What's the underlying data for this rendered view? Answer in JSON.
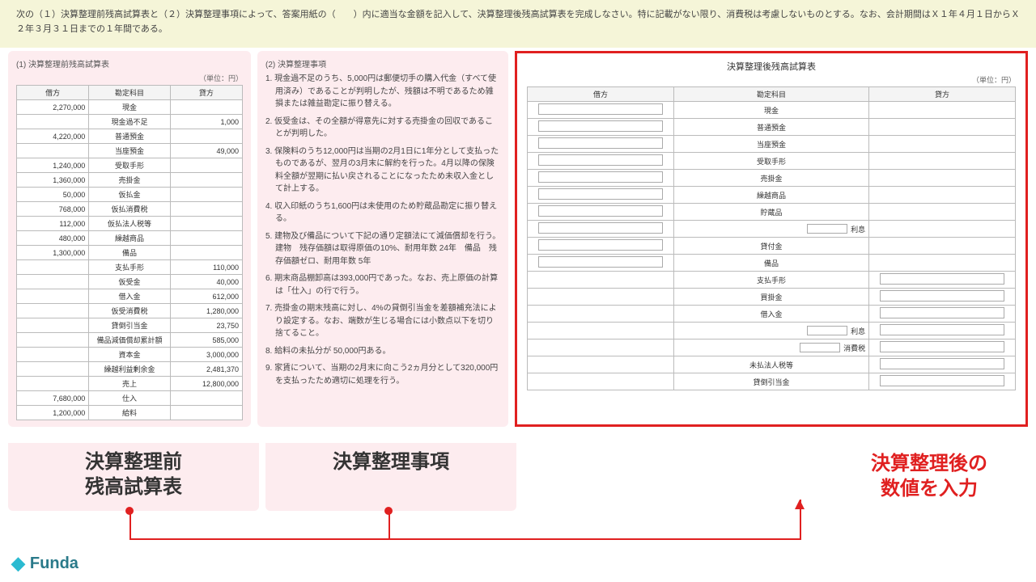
{
  "instruction": "次の（１）決算整理前残高試算表と（２）決算整理事項によって、答案用紙の（　　）内に適当な金額を記入して、決算整理後残高試算表を完成しなさい。特に記載がない限り、消費税は考慮しないものとする。なお、会計期間はＸ１年４月１日からＸ２年３月３１日までの１年間である。",
  "panel1": {
    "title": "(1) 決算整理前残高試算表",
    "unit": "（単位：円）",
    "headers": {
      "debit": "借方",
      "account": "勘定科目",
      "credit": "貸方"
    },
    "rows": [
      {
        "d": "2,270,000",
        "a": "現金",
        "c": ""
      },
      {
        "d": "",
        "a": "現金過不足",
        "c": "1,000"
      },
      {
        "d": "4,220,000",
        "a": "普通預金",
        "c": ""
      },
      {
        "d": "",
        "a": "当座預金",
        "c": "49,000"
      },
      {
        "d": "1,240,000",
        "a": "受取手形",
        "c": ""
      },
      {
        "d": "1,360,000",
        "a": "売掛金",
        "c": ""
      },
      {
        "d": "50,000",
        "a": "仮払金",
        "c": ""
      },
      {
        "d": "768,000",
        "a": "仮払消費税",
        "c": ""
      },
      {
        "d": "112,000",
        "a": "仮払法人税等",
        "c": ""
      },
      {
        "d": "480,000",
        "a": "繰越商品",
        "c": ""
      },
      {
        "d": "1,300,000",
        "a": "備品",
        "c": ""
      },
      {
        "d": "",
        "a": "支払手形",
        "c": "110,000"
      },
      {
        "d": "",
        "a": "仮受金",
        "c": "40,000"
      },
      {
        "d": "",
        "a": "借入金",
        "c": "612,000"
      },
      {
        "d": "",
        "a": "仮受消費税",
        "c": "1,280,000"
      },
      {
        "d": "",
        "a": "貸倒引当金",
        "c": "23,750"
      },
      {
        "d": "",
        "a": "備品減価償却累計額",
        "c": "585,000"
      },
      {
        "d": "",
        "a": "資本金",
        "c": "3,000,000"
      },
      {
        "d": "",
        "a": "繰越利益剰余金",
        "c": "2,481,370"
      },
      {
        "d": "",
        "a": "売上",
        "c": "12,800,000"
      },
      {
        "d": "7,680,000",
        "a": "仕入",
        "c": ""
      },
      {
        "d": "1,200,000",
        "a": "給料",
        "c": ""
      }
    ]
  },
  "panel2": {
    "title": "(2) 決算整理事項",
    "items": [
      "1. 現金過不足のうち、5,000円は郵便切手の購入代金（すべて使用済み）であることが判明したが、残額は不明であるため雑損または雑益勘定に振り替える。",
      "2. 仮受金は、その全額が得意先に対する売掛金の回収であることが判明した。",
      "3. 保険料のうち12,000円は当期の2月1日に1年分として支払ったものであるが、翌月の3月末に解約を行った。4月以降の保険料全額が翌期に払い戻されることになったため未収入金として計上する。",
      "4. 収入印紙のうち1,600円は未使用のため貯蔵品勘定に振り替える。",
      "5. 建物及び備品について下記の通り定額法にて減価償却を行う。　建物　残存価額は取得原価の10%、耐用年数 24年　備品　残存価額ゼロ、耐用年数 5年",
      "6. 期末商品棚卸高は393,000円であった。なお、売上原価の計算は「仕入」の行で行う。",
      "7. 売掛金の期末残高に対し、4%の貸倒引当金を差額補充法により設定する。なお、端数が生じる場合には小数点以下を切り捨てること。",
      "8. 給料の未払分が 50,000円ある。",
      "9. 家賃について、当期の2月末に向こう2ヵ月分として320,000円を支払ったため適切に処理を行う。"
    ]
  },
  "panel3": {
    "title": "決算整理後残高試算表",
    "unit": "（単位：円）",
    "headers": {
      "debit": "借方",
      "account": "勘定科目",
      "credit": "貸方"
    },
    "rows": [
      {
        "a": "現金",
        "side": "d"
      },
      {
        "a": "普通預金",
        "side": "d"
      },
      {
        "a": "当座預金",
        "side": "d"
      },
      {
        "a": "受取手形",
        "side": "d"
      },
      {
        "a": "売掛金",
        "side": "d"
      },
      {
        "a": "繰越商品",
        "side": "d"
      },
      {
        "a": "貯蔵品",
        "side": "d"
      },
      {
        "a": "利息",
        "side": "d",
        "prefixBlank": true
      },
      {
        "a": "貸付金",
        "side": "d"
      },
      {
        "a": "備品",
        "side": "d"
      },
      {
        "a": "支払手形",
        "side": "c"
      },
      {
        "a": "買掛金",
        "side": "c"
      },
      {
        "a": "借入金",
        "side": "c"
      },
      {
        "a": "利息",
        "side": "c",
        "prefixBlank": true
      },
      {
        "a": "消費税",
        "side": "c",
        "prefixBlank": true
      },
      {
        "a": "未払法人税等",
        "side": "c"
      },
      {
        "a": "貸倒引当金",
        "side": "c"
      }
    ]
  },
  "captions": {
    "left": "決算整理前\n残高試算表",
    "mid": "決算整理事項",
    "right": "決算整理後の\n数値を入力"
  },
  "logo": "Funda",
  "colors": {
    "highlightBg": "#fdecef",
    "redBorder": "#e02020",
    "topBg": "#f5f5d8"
  }
}
